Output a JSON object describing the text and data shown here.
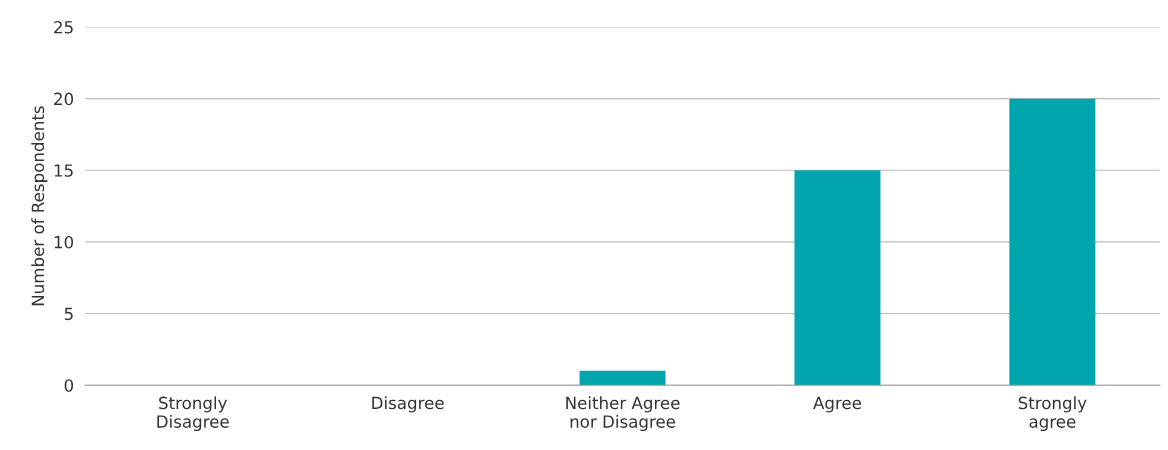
{
  "chart_data": {
    "type": "bar",
    "ylabel": "Number of Respondents",
    "categories": [
      "Strongly\nDisagree",
      "Disagree",
      "Neither Agree\nnor Disagree",
      "Agree",
      "Strongly\nagree"
    ],
    "values": [
      0,
      0,
      1,
      15,
      20
    ],
    "color": "#00a5ae",
    "ylim": [
      0,
      25
    ],
    "yticks": [
      0,
      5,
      10,
      15,
      20,
      25
    ],
    "grid": "y"
  }
}
